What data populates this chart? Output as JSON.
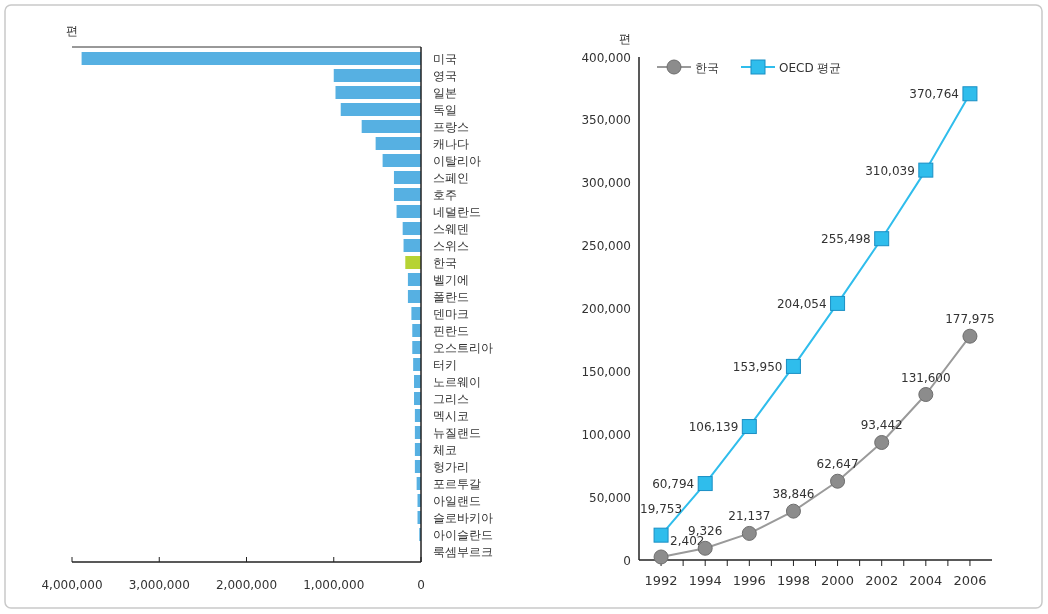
{
  "chart_data": [
    {
      "type": "bar",
      "orientation": "horizontal",
      "xlabel": "편",
      "categories": [
        "미국",
        "영국",
        "일본",
        "독일",
        "프랑스",
        "캐나다",
        "이탈리아",
        "스페인",
        "호주",
        "네덜란드",
        "스웨덴",
        "스위스",
        "한국",
        "벨기에",
        "폴란드",
        "덴마크",
        "핀란드",
        "오스트리아",
        "터키",
        "노르웨이",
        "그리스",
        "멕시코",
        "뉴질랜드",
        "체코",
        "헝가리",
        "포르투갈",
        "아일랜드",
        "슬로바키아",
        "아이슬란드",
        "룩셈부르크"
      ],
      "values": [
        3890000,
        1000000,
        980000,
        920000,
        680000,
        520000,
        440000,
        310000,
        310000,
        280000,
        210000,
        200000,
        180000,
        150000,
        150000,
        110000,
        100000,
        100000,
        90000,
        80000,
        80000,
        70000,
        70000,
        70000,
        70000,
        50000,
        40000,
        40000,
        20000,
        0
      ],
      "colors": [
        "#56b0e2",
        "#56b0e2",
        "#56b0e2",
        "#56b0e2",
        "#56b0e2",
        "#56b0e2",
        "#56b0e2",
        "#56b0e2",
        "#56b0e2",
        "#56b0e2",
        "#56b0e2",
        "#56b0e2",
        "#b6d334",
        "#56b0e2",
        "#56b0e2",
        "#56b0e2",
        "#56b0e2",
        "#56b0e2",
        "#56b0e2",
        "#56b0e2",
        "#56b0e2",
        "#56b0e2",
        "#56b0e2",
        "#56b0e2",
        "#56b0e2",
        "#56b0e2",
        "#56b0e2",
        "#56b0e2",
        "#56b0e2",
        "#56b0e2"
      ],
      "xlim": [
        4000000,
        0
      ],
      "xticks": [
        {
          "value": 4000000,
          "label": "4,000,000"
        },
        {
          "value": 3000000,
          "label": "3,000,000"
        },
        {
          "value": 2000000,
          "label": "2,000,000"
        },
        {
          "value": 1000000,
          "label": "1,000,000"
        },
        0
      ]
    },
    {
      "type": "line",
      "ylabel": "편",
      "x": [
        1992,
        1994,
        1996,
        1998,
        2000,
        2002,
        2004,
        2006
      ],
      "series": [
        {
          "name": "한국",
          "color": "#9a9a9a",
          "marker": "circle",
          "values": [
            2402,
            9326,
            21137,
            38846,
            62647,
            93442,
            131600,
            177975
          ],
          "value_labels": [
            "2,402",
            "9,326",
            "21,137",
            "38,846",
            "62,647",
            "93,442",
            "131,600",
            "177,975"
          ]
        },
        {
          "name": "OECD 평균",
          "color": "#2fbdec",
          "marker": "square",
          "values": [
            19753,
            60794,
            106139,
            153950,
            204054,
            255498,
            310039,
            370764
          ],
          "value_labels": [
            "19,753",
            "60,794",
            "106,139",
            "153,950",
            "204,054",
            "255,498",
            "310,039",
            "370,764"
          ]
        }
      ],
      "xlim": [
        1991,
        2007
      ],
      "xticks": [
        1992,
        {
          "value": 1993,
          "label": null
        },
        1994,
        {
          "value": 1995,
          "label": null
        },
        1996,
        {
          "value": 1997,
          "label": null
        },
        1998,
        {
          "value": 1999,
          "label": null
        },
        2000,
        {
          "value": 2001,
          "label": null
        },
        2002,
        {
          "value": 2003,
          "label": null
        },
        2004,
        {
          "value": 2005,
          "label": null
        },
        2006
      ],
      "ylim": [
        0,
        400000
      ],
      "yticks": [
        0,
        {
          "value": 50000,
          "label": "50,000"
        },
        {
          "value": 100000,
          "label": "100,000"
        },
        {
          "value": 150000,
          "label": "150,000"
        },
        {
          "value": 200000,
          "label": "200,000"
        },
        {
          "value": 250000,
          "label": "250,000"
        },
        {
          "value": 300000,
          "label": "300,000"
        },
        {
          "value": 350000,
          "label": "350,000"
        },
        {
          "value": 400000,
          "label": "400,000"
        }
      ],
      "legend": "top left",
      "grid": false
    }
  ]
}
